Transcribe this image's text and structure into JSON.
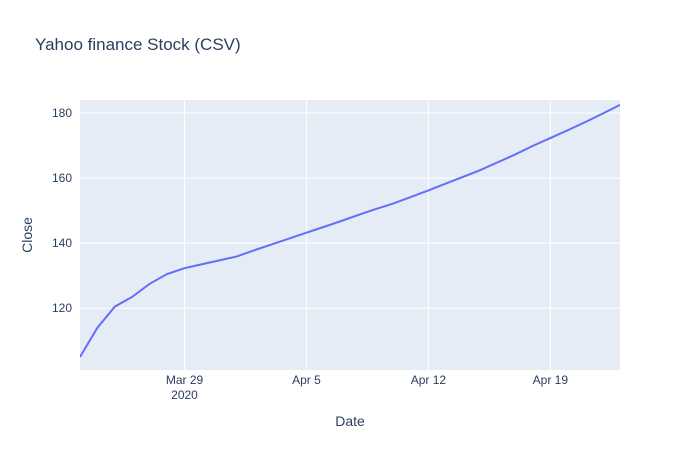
{
  "chart_data": {
    "type": "line",
    "title": "Yahoo finance Stock (CSV)",
    "xlabel": "Date",
    "ylabel": "Close",
    "x_type": "date",
    "xlim": [
      "2020-03-23",
      "2020-04-23"
    ],
    "ylim": [
      101,
      184
    ],
    "x_ticks": [
      {
        "value": "2020-03-29",
        "label": "Mar 29",
        "sublabel": "2020"
      },
      {
        "value": "2020-04-05",
        "label": "Apr 5",
        "sublabel": ""
      },
      {
        "value": "2020-04-12",
        "label": "Apr 12",
        "sublabel": ""
      },
      {
        "value": "2020-04-19",
        "label": "Apr 19",
        "sublabel": ""
      }
    ],
    "y_ticks": [
      120,
      140,
      160,
      180
    ],
    "grid": true,
    "colors": {
      "plot_bg": "#E5ECF6",
      "grid": "#ffffff",
      "line": "#636EFA",
      "text": "#2a3f5f"
    },
    "series": [
      {
        "name": "",
        "x": [
          "2020-03-23",
          "2020-03-24",
          "2020-03-25",
          "2020-03-26",
          "2020-03-27",
          "2020-03-28",
          "2020-03-29",
          "2020-03-30",
          "2020-03-31",
          "2020-04-01",
          "2020-04-02",
          "2020-04-03",
          "2020-04-04",
          "2020-04-05",
          "2020-04-06",
          "2020-04-07",
          "2020-04-08",
          "2020-04-09",
          "2020-04-10",
          "2020-04-11",
          "2020-04-12",
          "2020-04-13",
          "2020-04-14",
          "2020-04-15",
          "2020-04-16",
          "2020-04-17",
          "2020-04-18",
          "2020-04-19",
          "2020-04-20",
          "2020-04-21",
          "2020-04-22",
          "2020-04-23"
        ],
        "y": [
          105.0,
          114.0,
          120.5,
          123.5,
          127.5,
          130.5,
          132.3,
          133.5,
          134.7,
          135.9,
          137.8,
          139.6,
          141.4,
          143.2,
          145.0,
          146.8,
          148.7,
          150.5,
          152.2,
          154.2,
          156.2,
          158.3,
          160.4,
          162.5,
          164.9,
          167.3,
          169.9,
          172.3,
          174.7,
          177.2,
          179.8,
          182.5
        ]
      }
    ]
  }
}
